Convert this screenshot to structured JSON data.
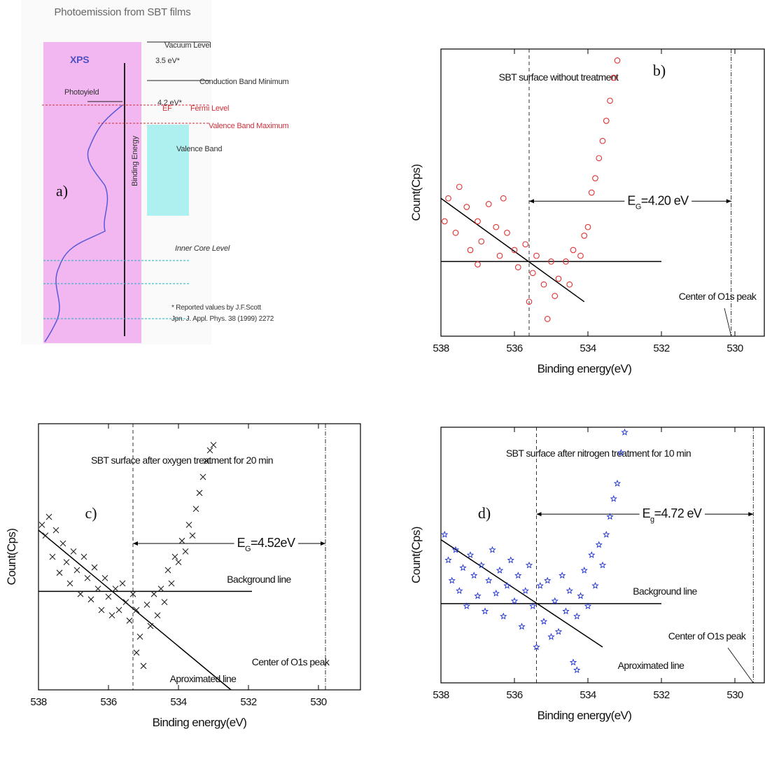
{
  "diagram": {
    "title": "Photoemission from SBT films",
    "xps": "XPS",
    "photoyield": "Photoyield",
    "binding_energy": "Binding Energy",
    "panel": "a)",
    "vacuum_level": "Vacuum Level",
    "gap1": "3.5 eV*",
    "cbm": "Conduction Band Minimum",
    "gap2": "4.2 eV*",
    "ef": "EF",
    "fermi": "Fermi Level",
    "vbm": "Valence Band Maximum",
    "valence_band": "Valence Band",
    "inner_core": "Inner Core Level",
    "note1": "* Reported values by J.F.Scott",
    "note2": "Jpn. J. Appl. Phys. 38 (1999) 2272"
  },
  "chart_data": [
    {
      "type": "scatter",
      "marker": "circle",
      "color": "#e03030",
      "ylabel": "Count(Cps)",
      "xlabel": "Binding energy(eV)",
      "xlim": [
        538,
        529.2
      ],
      "ylim": [
        0,
        100
      ],
      "xticks": [
        538,
        536,
        534,
        532,
        530
      ],
      "annotations": [
        "SBT surface without treatment",
        "b)",
        "Center of O1s peak"
      ],
      "gap_label": {
        "symbol": "E",
        "sub": "G",
        "value": "=4.20 eV"
      },
      "gap_arrow": {
        "x": [
          535.6,
          530.1
        ],
        "y": 47
      },
      "vlines": [
        {
          "x": 535.6,
          "style": "dashed"
        },
        {
          "x": 530.1,
          "style": "dashdot"
        }
      ],
      "lines": [
        {
          "x": [
            538,
            534.1
          ],
          "y": [
            48,
            12
          ]
        },
        {
          "x": [
            538,
            532
          ],
          "y": [
            26,
            26
          ]
        }
      ],
      "x": [
        537.9,
        537.8,
        537.6,
        537.5,
        537.3,
        537.2,
        537.0,
        536.9,
        536.7,
        536.5,
        536.4,
        536.2,
        536.0,
        535.9,
        535.7,
        535.5,
        535.4,
        535.2,
        535.0,
        534.9,
        534.8,
        534.6,
        534.5,
        534.4,
        534.2,
        534.1,
        534.0,
        533.9,
        533.8,
        533.7,
        533.6,
        533.5,
        533.4,
        533.3,
        533.2,
        537.0,
        536.3,
        535.1,
        535.6
      ],
      "y": [
        40,
        48,
        36,
        52,
        45,
        30,
        40,
        33,
        46,
        38,
        28,
        36,
        30,
        24,
        32,
        22,
        28,
        18,
        26,
        14,
        20,
        26,
        18,
        30,
        28,
        35,
        38,
        50,
        55,
        62,
        68,
        75,
        82,
        90,
        96,
        25,
        48,
        6,
        12
      ]
    },
    {
      "type": "scatter",
      "marker": "cross",
      "color": "#222222",
      "ylabel": "Count(Cps)",
      "xlabel": "Binding energy(eV)",
      "xlim": [
        538,
        528.8
      ],
      "ylim": [
        0,
        100
      ],
      "xticks": [
        538,
        536,
        534,
        532,
        530
      ],
      "annotations": [
        "SBT surface after oxygen treatment for 20 min",
        "c)",
        "Background line",
        "Aproximated line",
        "Center of O1s peak"
      ],
      "gap_label": {
        "symbol": "E",
        "sub": "G",
        "value": "=4.52eV"
      },
      "gap_arrow": {
        "x": [
          535.3,
          529.8
        ],
        "y": 55
      },
      "vlines": [
        {
          "x": 535.3,
          "style": "dashed"
        },
        {
          "x": 529.8,
          "style": "dashdot"
        }
      ],
      "lines": [
        {
          "x": [
            538,
            532.5
          ],
          "y": [
            60,
            0
          ]
        },
        {
          "x": [
            538,
            531.9
          ],
          "y": [
            37,
            37
          ]
        }
      ],
      "x": [
        537.9,
        537.8,
        537.7,
        537.6,
        537.5,
        537.4,
        537.3,
        537.2,
        537.1,
        537.0,
        536.9,
        536.8,
        536.7,
        536.6,
        536.5,
        536.4,
        536.3,
        536.2,
        536.1,
        536.0,
        535.9,
        535.8,
        535.7,
        535.6,
        535.5,
        535.4,
        535.3,
        535.2,
        535.1,
        535.0,
        534.9,
        534.8,
        534.7,
        534.6,
        534.5,
        534.4,
        534.3,
        534.2,
        534.1,
        534.0,
        533.9,
        533.8,
        533.7,
        533.6,
        533.5,
        533.4,
        533.3,
        533.2,
        533.1,
        533.0,
        535.2
      ],
      "y": [
        62,
        58,
        65,
        50,
        60,
        44,
        55,
        48,
        40,
        52,
        45,
        36,
        50,
        42,
        34,
        46,
        38,
        30,
        42,
        35,
        28,
        38,
        30,
        40,
        33,
        26,
        36,
        30,
        20,
        9,
        32,
        24,
        36,
        28,
        38,
        33,
        45,
        40,
        50,
        48,
        56,
        52,
        62,
        58,
        68,
        74,
        80,
        86,
        90,
        92,
        14
      ]
    },
    {
      "type": "scatter",
      "marker": "star",
      "color": "#1a2fd0",
      "ylabel": "Count(Cps)",
      "xlabel": "Binding energy(eV)",
      "xlim": [
        538,
        529.2
      ],
      "ylim": [
        0,
        100
      ],
      "xticks": [
        538,
        536,
        534,
        532,
        530
      ],
      "annotations": [
        "SBT surface after nitrogen treatment for 10 min",
        "d)",
        "Background line",
        "Aproximated line",
        "Center of O1s peak"
      ],
      "gap_label": {
        "symbol": "E",
        "sub": "g",
        "value": "=4.72 eV"
      },
      "gap_arrow": {
        "x": [
          535.4,
          529.5
        ],
        "y": 66
      },
      "vlines": [
        {
          "x": 535.4,
          "style": "dashed"
        },
        {
          "x": 529.5,
          "style": "dashdot"
        }
      ],
      "lines": [
        {
          "x": [
            538,
            533.6
          ],
          "y": [
            56,
            14
          ]
        },
        {
          "x": [
            538,
            532
          ],
          "y": [
            31,
            31
          ]
        }
      ],
      "x": [
        537.9,
        537.8,
        537.7,
        537.6,
        537.5,
        537.4,
        537.3,
        537.2,
        537.1,
        537.0,
        536.9,
        536.8,
        536.7,
        536.6,
        536.5,
        536.4,
        536.3,
        536.2,
        536.1,
        536.0,
        535.9,
        535.8,
        535.7,
        535.6,
        535.5,
        535.4,
        535.3,
        535.2,
        535.1,
        535.0,
        534.9,
        534.8,
        534.7,
        534.6,
        534.5,
        534.4,
        534.3,
        534.2,
        534.1,
        534.0,
        533.9,
        533.8,
        533.7,
        533.6,
        533.5,
        533.4,
        533.3,
        533.2,
        533.1,
        533.0,
        534.3
      ],
      "y": [
        58,
        48,
        40,
        52,
        36,
        45,
        30,
        50,
        42,
        34,
        46,
        28,
        40,
        52,
        35,
        44,
        26,
        38,
        48,
        32,
        42,
        22,
        36,
        46,
        30,
        14,
        38,
        24,
        40,
        18,
        32,
        20,
        42,
        28,
        36,
        8,
        26,
        34,
        44,
        30,
        50,
        38,
        54,
        46,
        58,
        65,
        72,
        78,
        90,
        98,
        5
      ]
    }
  ]
}
